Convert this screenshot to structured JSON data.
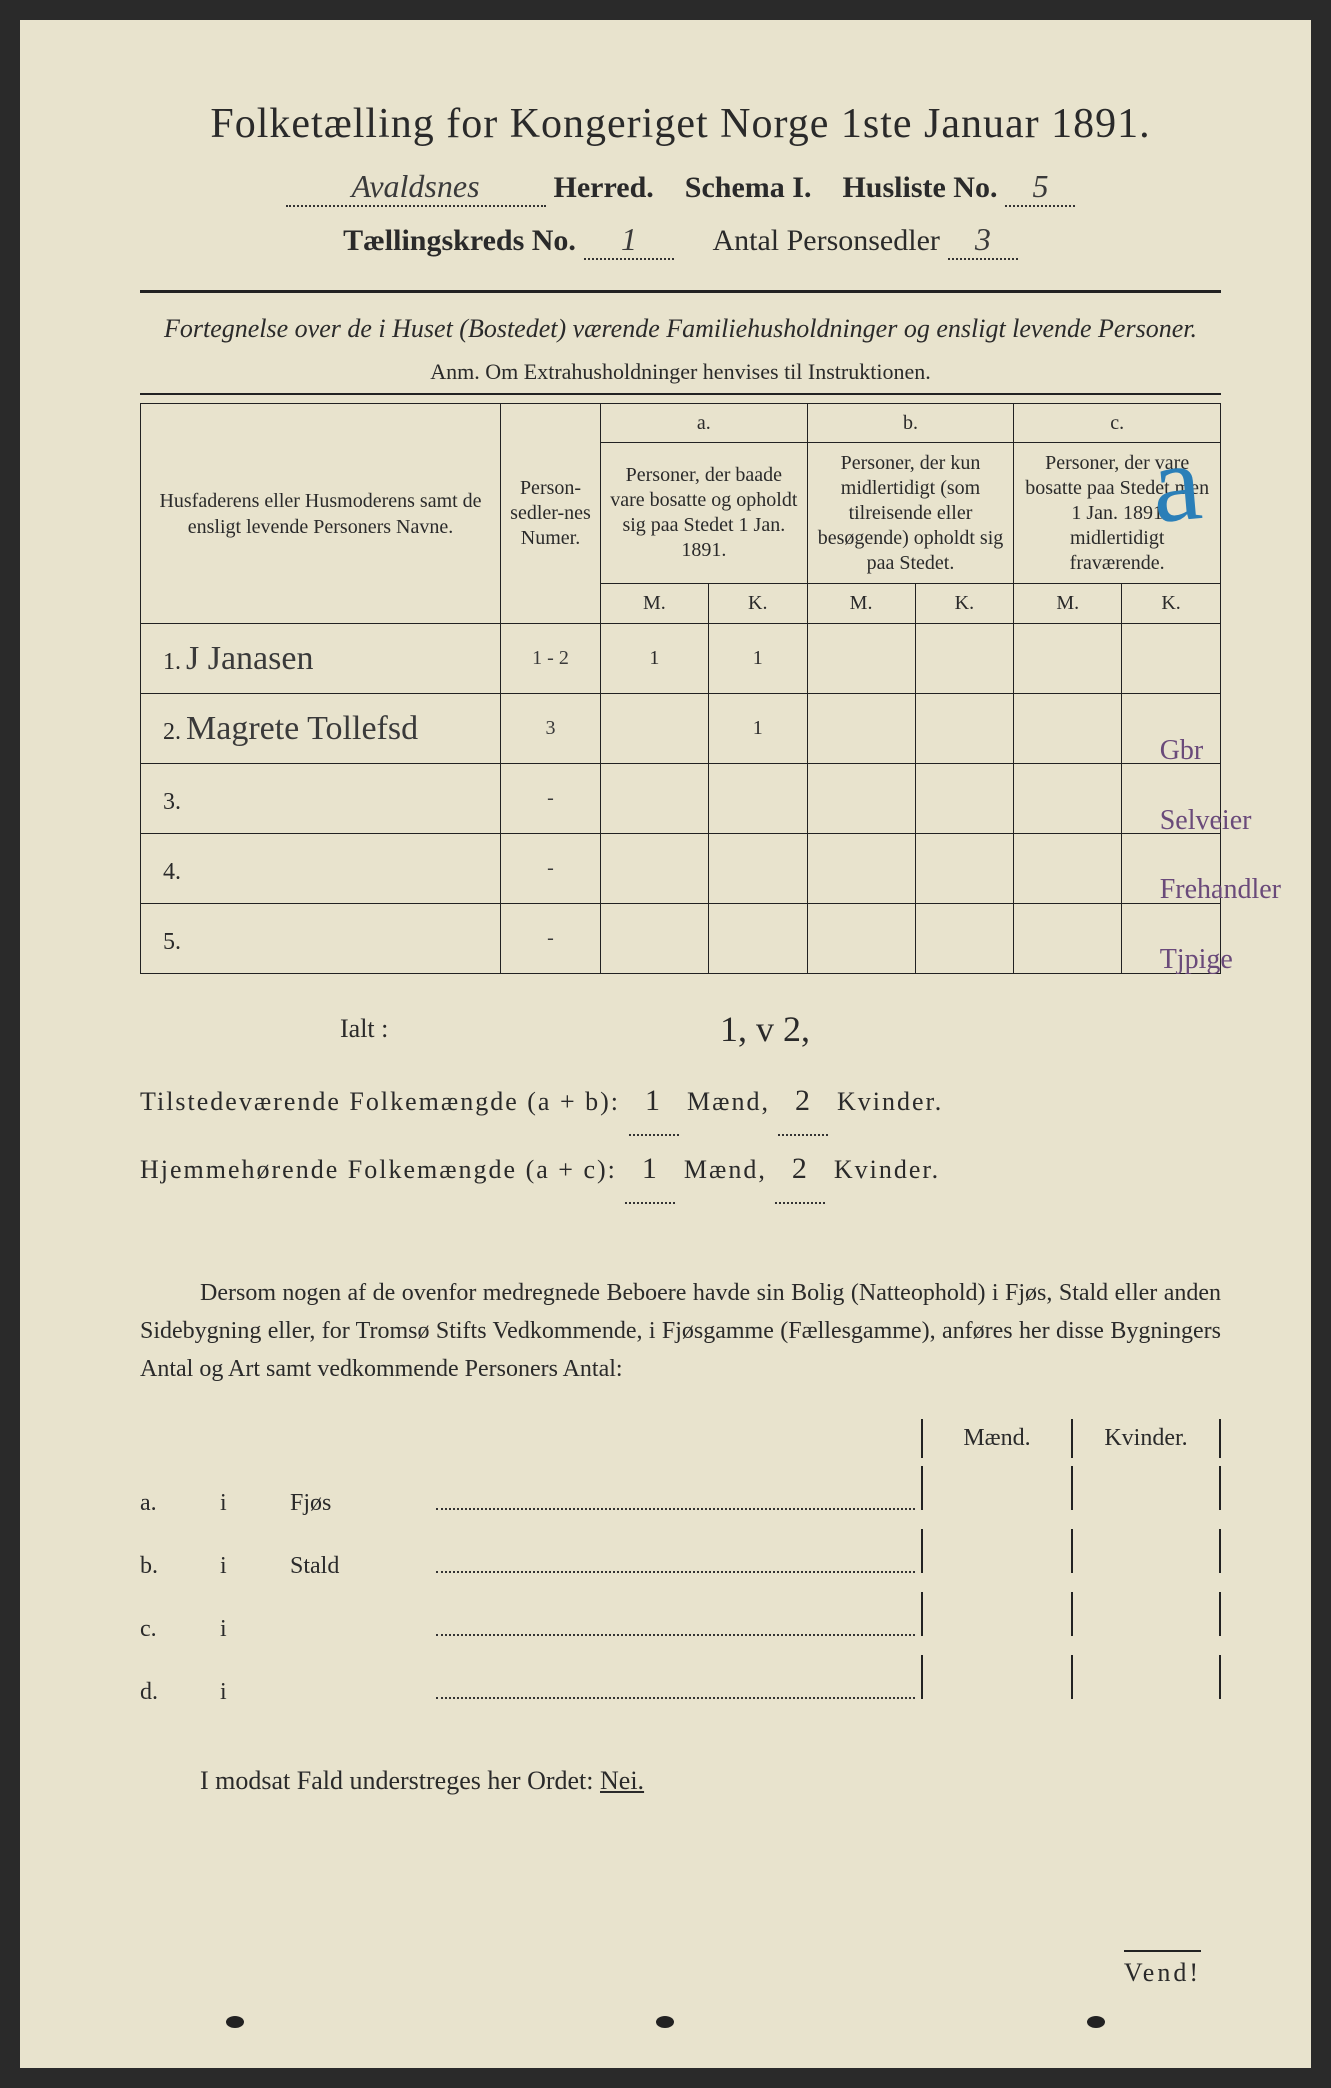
{
  "header": {
    "main_title": "Folketælling for Kongeriget Norge 1ste Januar 1891.",
    "herred_value": "Avaldsnes",
    "herred_label": "Herred.",
    "schema_label": "Schema I.",
    "husliste_label": "Husliste No.",
    "husliste_value": "5",
    "kreds_label": "Tællingskreds No.",
    "kreds_value": "1",
    "antal_label": "Antal Personsedler",
    "antal_value": "3"
  },
  "subtitle": "Fortegnelse over de i Huset (Bostedet) værende Familiehusholdninger og ensligt levende Personer.",
  "anm": "Anm.  Om Extrahusholdninger henvises til Instruktionen.",
  "big_a": "a",
  "margin_notes": [
    "Gbr",
    "Selveier",
    "Frehandler",
    "Tjpige"
  ],
  "table": {
    "col1": "Husfaderens eller Husmoderens samt de ensligt levende Personers Navne.",
    "col2": "Person-sedler-nes Numer.",
    "col_a_top": "a.",
    "col_a": "Personer, der baade vare bosatte og opholdt sig paa Stedet 1 Jan. 1891.",
    "col_b_top": "b.",
    "col_b": "Personer, der kun midlertidigt (som tilreisende eller besøgende) opholdt sig paa Stedet.",
    "col_c_top": "c.",
    "col_c": "Personer, der vare bosatte paa Stedet men 1 Jan. 1891 midlertidigt fraværende.",
    "m": "M.",
    "k": "K.",
    "rows": [
      {
        "n": "1.",
        "name": "J Janasen",
        "numer": "1 - 2",
        "am": "1",
        "ak": "1",
        "bm": "",
        "bk": "",
        "cm": "",
        "ck": ""
      },
      {
        "n": "2.",
        "name": "Magrete Tollefsd",
        "numer": "3",
        "am": "",
        "ak": "1",
        "bm": "",
        "bk": "",
        "cm": "",
        "ck": ""
      },
      {
        "n": "3.",
        "name": "",
        "numer": "-",
        "am": "",
        "ak": "",
        "bm": "",
        "bk": "",
        "cm": "",
        "ck": ""
      },
      {
        "n": "4.",
        "name": "",
        "numer": "-",
        "am": "",
        "ak": "",
        "bm": "",
        "bk": "",
        "cm": "",
        "ck": ""
      },
      {
        "n": "5.",
        "name": "",
        "numer": "-",
        "am": "",
        "ak": "",
        "bm": "",
        "bk": "",
        "cm": "",
        "ck": ""
      }
    ]
  },
  "totals": {
    "ialt_label": "Ialt :",
    "ialt_hw": "1, v 2,",
    "line1_label": "Tilstedeværende Folkemængde (a + b):",
    "line1_m": "1",
    "line1_k": "2",
    "line2_label": "Hjemmehørende Folkemængde (a + c):",
    "line2_m": "1",
    "line2_k": "2",
    "maend": "Mænd,",
    "kvinder": "Kvinder."
  },
  "para": "Dersom nogen af de ovenfor medregnede Beboere havde sin Bolig (Natteophold) i Fjøs, Stald eller anden Sidebygning eller, for Tromsø Stifts Vedkommende, i Fjøsgamme (Fællesgamme), anføres her disse Bygningers Antal og Art samt vedkommende Personers Antal:",
  "bldg": {
    "maend": "Mænd.",
    "kvinder": "Kvinder.",
    "rows": [
      {
        "a": "a.",
        "i": "i",
        "name": "Fjøs"
      },
      {
        "a": "b.",
        "i": "i",
        "name": "Stald"
      },
      {
        "a": "c.",
        "i": "i",
        "name": ""
      },
      {
        "a": "d.",
        "i": "i",
        "name": ""
      }
    ]
  },
  "nei_line_pre": "I modsat Fald understreges her Ordet: ",
  "nei_word": "Nei.",
  "vend": "Vend!"
}
